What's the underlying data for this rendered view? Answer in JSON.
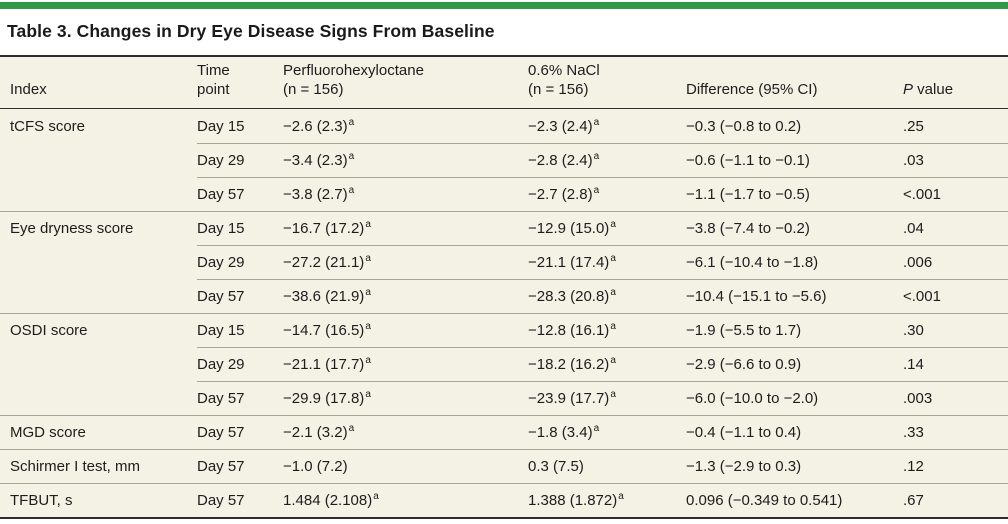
{
  "title": "Table 3. Changes in Dry Eye Disease Signs From Baseline",
  "colors": {
    "accent_bar": "#319845",
    "row_background": "#f4f1e5",
    "rule_dark": "#2e2e2e",
    "rule_light": "#a9a699"
  },
  "table": {
    "header": {
      "index": "Index",
      "time_point_lines": [
        "Time",
        "point"
      ],
      "pfho_lines": [
        "Perfluorohexyloctane",
        "(n = 156)"
      ],
      "nacl_lines": [
        "0.6% NaCl",
        "(n = 156)"
      ],
      "difference": "Difference (95% CI)",
      "p_italic": "P",
      "p_rest": " value"
    },
    "rows": [
      {
        "index": "tCFS score",
        "group_start": true,
        "time": "Day 15",
        "pfho": "−2.6 (2.3)",
        "pfho_sup": "a",
        "nacl": "−2.3 (2.4)",
        "nacl_sup": "a",
        "diff": "−0.3 (−0.8 to 0.2)",
        "p": ".25"
      },
      {
        "index": "",
        "group_start": false,
        "time": "Day 29",
        "pfho": "−3.4 (2.3)",
        "pfho_sup": "a",
        "nacl": "−2.8 (2.4)",
        "nacl_sup": "a",
        "diff": "−0.6 (−1.1 to −0.1)",
        "p": ".03"
      },
      {
        "index": "",
        "group_start": false,
        "time": "Day 57",
        "pfho": "−3.8 (2.7)",
        "pfho_sup": "a",
        "nacl": "−2.7 (2.8)",
        "nacl_sup": "a",
        "diff": "−1.1 (−1.7 to −0.5)",
        "p": "<.001"
      },
      {
        "index": "Eye dryness score",
        "group_start": true,
        "time": "Day 15",
        "pfho": "−16.7 (17.2)",
        "pfho_sup": "a",
        "nacl": "−12.9 (15.0)",
        "nacl_sup": "a",
        "diff": "−3.8 (−7.4 to −0.2)",
        "p": ".04"
      },
      {
        "index": "",
        "group_start": false,
        "time": "Day 29",
        "pfho": "−27.2 (21.1)",
        "pfho_sup": "a",
        "nacl": "−21.1 (17.4)",
        "nacl_sup": "a",
        "diff": "−6.1 (−10.4 to −1.8)",
        "p": ".006"
      },
      {
        "index": "",
        "group_start": false,
        "time": "Day 57",
        "pfho": "−38.6 (21.9)",
        "pfho_sup": "a",
        "nacl": "−28.3 (20.8)",
        "nacl_sup": "a",
        "diff": "−10.4 (−15.1 to −5.6)",
        "p": "<.001"
      },
      {
        "index": "OSDI score",
        "group_start": true,
        "time": "Day 15",
        "pfho": "−14.7 (16.5)",
        "pfho_sup": "a",
        "nacl": "−12.8 (16.1)",
        "nacl_sup": "a",
        "diff": "−1.9 (−5.5 to 1.7)",
        "p": ".30"
      },
      {
        "index": "",
        "group_start": false,
        "time": "Day 29",
        "pfho": "−21.1 (17.7)",
        "pfho_sup": "a",
        "nacl": "−18.2 (16.2)",
        "nacl_sup": "a",
        "diff": "−2.9 (−6.6 to 0.9)",
        "p": ".14"
      },
      {
        "index": "",
        "group_start": false,
        "time": "Day 57",
        "pfho": "−29.9 (17.8)",
        "pfho_sup": "a",
        "nacl": "−23.9 (17.7)",
        "nacl_sup": "a",
        "diff": "−6.0 (−10.0 to −2.0)",
        "p": ".003"
      },
      {
        "index": "MGD score",
        "group_start": true,
        "time": "Day 57",
        "pfho": "−2.1 (3.2)",
        "pfho_sup": "a",
        "nacl": "−1.8 (3.4)",
        "nacl_sup": "a",
        "diff": "−0.4 (−1.1 to 0.4)",
        "p": ".33"
      },
      {
        "index": "Schirmer I test, mm",
        "group_start": true,
        "time": "Day 57",
        "pfho": "−1.0 (7.2)",
        "pfho_sup": "",
        "nacl": "0.3 (7.5)",
        "nacl_sup": "",
        "diff": "−1.3 (−2.9 to 0.3)",
        "p": ".12"
      },
      {
        "index": "TFBUT, s",
        "group_start": true,
        "time": "Day 57",
        "pfho": "1.484 (2.108)",
        "pfho_sup": "a",
        "nacl": "1.388 (1.872)",
        "nacl_sup": "a",
        "diff": "0.096 (−0.349 to 0.541)",
        "p": ".67"
      }
    ]
  }
}
